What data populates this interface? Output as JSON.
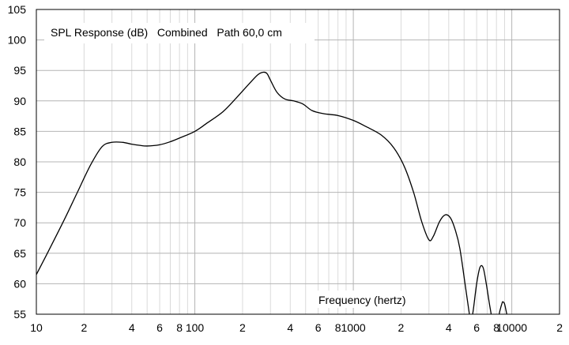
{
  "chart_data": {
    "type": "line",
    "title": "SPL Response (dB)   Combined   Path 60,0 cm",
    "xlabel": "Frequency (hertz)",
    "ylabel": "",
    "x_scale": "log",
    "xlim": [
      10,
      20000
    ],
    "ylim": [
      55,
      105
    ],
    "grid": true,
    "legend": "none",
    "colors": {
      "curve": "#000000",
      "grid_major": "#b4b4b4",
      "grid_minor": "#dadada",
      "background": "#ffffff"
    },
    "y_ticks": [
      55,
      60,
      65,
      70,
      75,
      80,
      85,
      90,
      95,
      100,
      105
    ],
    "x_ticks": [
      {
        "value": 10,
        "label": "10"
      },
      {
        "value": 20,
        "label": "2"
      },
      {
        "value": 40,
        "label": "4"
      },
      {
        "value": 60,
        "label": "6"
      },
      {
        "value": 80,
        "label": "8"
      },
      {
        "value": 100,
        "label": "100"
      },
      {
        "value": 200,
        "label": "2"
      },
      {
        "value": 400,
        "label": "4"
      },
      {
        "value": 600,
        "label": "6"
      },
      {
        "value": 800,
        "label": "8"
      },
      {
        "value": 1000,
        "label": "1000"
      },
      {
        "value": 2000,
        "label": "2"
      },
      {
        "value": 4000,
        "label": "4"
      },
      {
        "value": 6000,
        "label": "6"
      },
      {
        "value": 8000,
        "label": "8"
      },
      {
        "value": 10000,
        "label": "10000"
      },
      {
        "value": 20000,
        "label": "2"
      }
    ],
    "series": [
      {
        "x": [
          10,
          12,
          15,
          18,
          22,
          26,
          30,
          35,
          40,
          45,
          50,
          60,
          70,
          80,
          100,
          120,
          150,
          180,
          220,
          250,
          270,
          285,
          300,
          330,
          370,
          420,
          480,
          550,
          650,
          800,
          1000,
          1200,
          1500,
          1800,
          2100,
          2400,
          2700,
          3000,
          3200,
          3500,
          3800,
          4100,
          4400,
          4700,
          5100,
          5400,
          5500,
          5700,
          6000,
          6300,
          6600,
          6900,
          7300,
          7700,
          8100,
          8400,
          8700,
          8800,
          9000,
          9300,
          9600
        ],
        "y": [
          61.5,
          65.5,
          70.5,
          74.8,
          79.5,
          82.5,
          83.2,
          83.2,
          82.9,
          82.7,
          82.6,
          82.8,
          83.3,
          83.9,
          85.0,
          86.4,
          88.2,
          90.3,
          92.8,
          94.3,
          94.7,
          94.5,
          93.4,
          91.4,
          90.3,
          90.0,
          89.5,
          88.4,
          87.9,
          87.6,
          86.8,
          85.8,
          84.4,
          82.3,
          79.2,
          75.0,
          70.2,
          67.2,
          67.8,
          70.2,
          71.3,
          70.8,
          68.8,
          65.8,
          59.5,
          55.0,
          53.5,
          55.5,
          60.0,
          62.7,
          62.6,
          60.0,
          56.0,
          53.0,
          53.5,
          55.5,
          56.9,
          57.0,
          56.7,
          55.0,
          53.5
        ]
      }
    ]
  }
}
